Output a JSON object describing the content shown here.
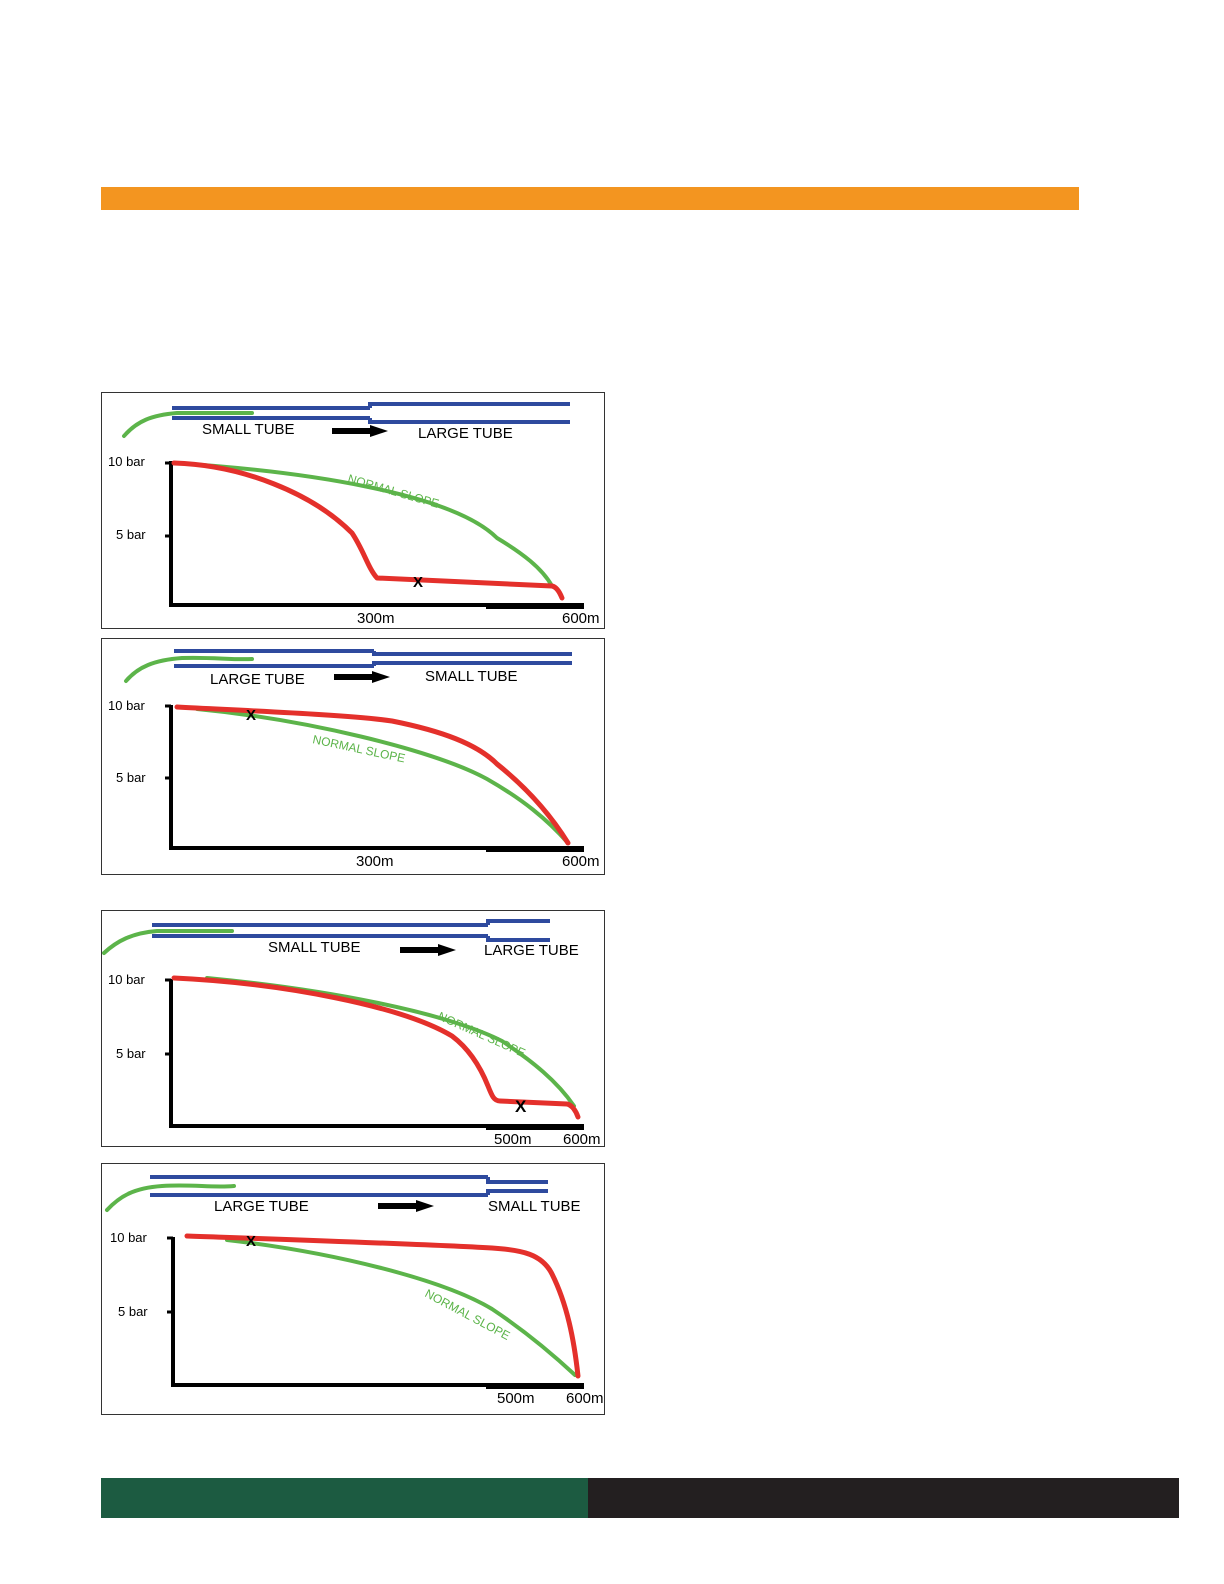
{
  "colors": {
    "accent_bar": "#f39520",
    "footer_left": "#1c5b41",
    "footer_right": "#231f20",
    "tube": "#2e4a9e",
    "normal_slope": "#5cb44a",
    "pressure_line": "#e4302b",
    "axis": "#000000"
  },
  "diagrams": [
    {
      "tube_first": "SMALL  TUBE",
      "tube_second": "LARGE  TUBE",
      "y_top": "10  bar",
      "y_mid": "5  bar",
      "x_mid": "300m",
      "x_end": "600m",
      "slope_label": "NORMAL  SLOPE",
      "marker": "X"
    },
    {
      "tube_first": "LARGE  TUBE",
      "tube_second": "SMALL  TUBE",
      "y_top": "10  bar",
      "y_mid": "5  bar",
      "x_mid": "300m",
      "x_end": "600m",
      "slope_label": "NORMAL  SLOPE",
      "marker": "X"
    },
    {
      "tube_first": "SMALL  TUBE",
      "tube_second": "LARGE  TUBE",
      "y_top": "10  bar",
      "y_mid": "5  bar",
      "x_mid": "500m",
      "x_end": "600m",
      "slope_label": "NORMAL  SLOPE",
      "marker": "X"
    },
    {
      "tube_first": "LARGE  TUBE",
      "tube_second": "SMALL  TUBE",
      "y_top": "10  bar",
      "y_mid": "5  bar",
      "x_mid": "500m",
      "x_end": "600m",
      "slope_label": "NORMAL  SLOPE",
      "marker": "X"
    }
  ]
}
